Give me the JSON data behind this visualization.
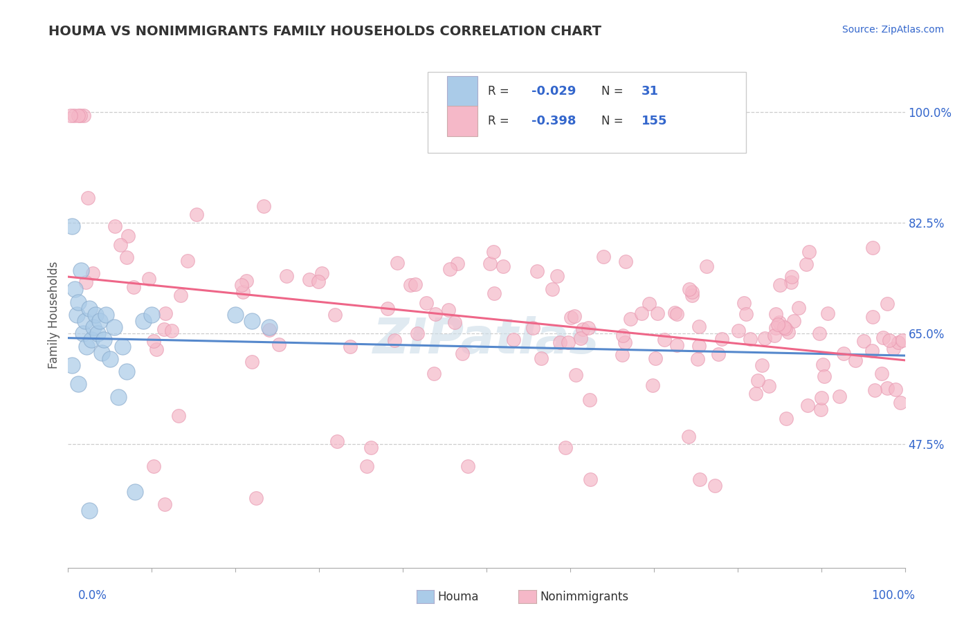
{
  "title": "HOUMA VS NONIMMIGRANTS FAMILY HOUSEHOLDS CORRELATION CHART",
  "source_text": "Source: ZipAtlas.com",
  "ylabel": "Family Households",
  "houma_R": -0.029,
  "houma_N": 31,
  "nonimm_R": -0.398,
  "nonimm_N": 155,
  "houma_color": "#aacbe8",
  "houma_edge_color": "#88aacc",
  "nonimm_color": "#f5b8c8",
  "nonimm_edge_color": "#e898b0",
  "houma_line_color": "#5588cc",
  "nonimm_line_color": "#ee6688",
  "watermark_color": "#ccdde8",
  "legend_R_color": "#3366cc",
  "legend_N_color": "#333333",
  "background_color": "#ffffff",
  "grid_color": "#cccccc",
  "y_tick_labels": [
    "100.0%",
    "82.5%",
    "65.0%",
    "47.5%"
  ],
  "y_tick_values": [
    1.0,
    0.825,
    0.65,
    0.475
  ],
  "xlim": [
    0.0,
    1.0
  ],
  "ylim": [
    0.28,
    1.08
  ]
}
